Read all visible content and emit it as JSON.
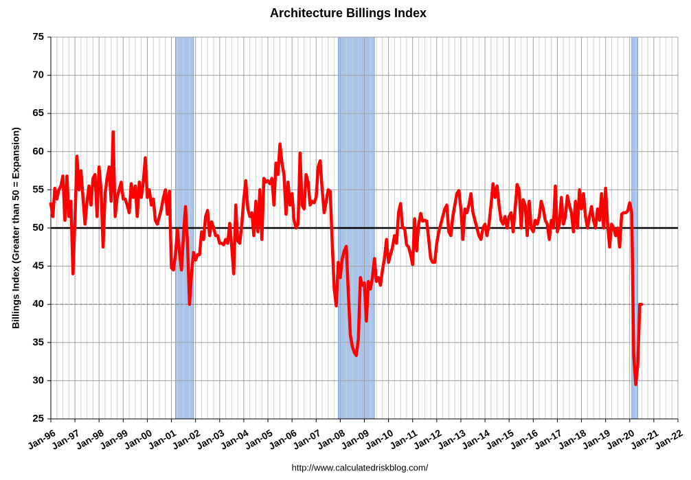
{
  "chart_data": {
    "type": "line",
    "title": "Architecture Billings Index",
    "y_label": "Billings Index (Greater than 50 = Expansion)",
    "source": "http://www.calculatedriskblog.com/",
    "color": "#ff0000",
    "grid": true,
    "xlim": [
      "1996-01",
      "2022-01"
    ],
    "ylim": [
      25,
      75
    ],
    "yticks": [
      25,
      30,
      35,
      40,
      45,
      50,
      55,
      60,
      65,
      70,
      75
    ],
    "xticks": [
      {
        "value": "1996-01",
        "label": "Jan-96"
      },
      {
        "value": "1997-01",
        "label": "Jan-97"
      },
      {
        "value": "1998-01",
        "label": "Jan-98"
      },
      {
        "value": "1999-01",
        "label": "Jan-99"
      },
      {
        "value": "2000-01",
        "label": "Jan-00"
      },
      {
        "value": "2001-01",
        "label": "Jan-01"
      },
      {
        "value": "2002-01",
        "label": "Jan-02"
      },
      {
        "value": "2003-01",
        "label": "Jan-03"
      },
      {
        "value": "2004-01",
        "label": "Jan-04"
      },
      {
        "value": "2005-01",
        "label": "Jan-05"
      },
      {
        "value": "2006-01",
        "label": "Jan-06"
      },
      {
        "value": "2007-01",
        "label": "Jan-07"
      },
      {
        "value": "2008-01",
        "label": "Jan-08"
      },
      {
        "value": "2009-01",
        "label": "Jan-09"
      },
      {
        "value": "2010-01",
        "label": "Jan-10"
      },
      {
        "value": "2011-01",
        "label": "Jan-11"
      },
      {
        "value": "2012-01",
        "label": "Jan-12"
      },
      {
        "value": "2013-01",
        "label": "Jan-13"
      },
      {
        "value": "2014-01",
        "label": "Jan-14"
      },
      {
        "value": "2015-01",
        "label": "Jan-15"
      },
      {
        "value": "2016-01",
        "label": "Jan-16"
      },
      {
        "value": "2017-01",
        "label": "Jan-17"
      },
      {
        "value": "2018-01",
        "label": "Jan-18"
      },
      {
        "value": "2019-01",
        "label": "Jan-19"
      },
      {
        "value": "2020-01",
        "label": "Jan-20"
      },
      {
        "value": "2021-01",
        "label": "Jan-21"
      },
      {
        "value": "2022-01",
        "label": "Jan-22"
      }
    ],
    "recessions": [
      {
        "start": "2001-03",
        "end": "2001-12"
      },
      {
        "start": "2007-12",
        "end": "2009-06"
      },
      {
        "start": "2020-02",
        "end": "2020-05"
      }
    ],
    "hlines": [
      {
        "value": 50,
        "color": "#000000",
        "style": "solid"
      },
      {
        "value": 40,
        "color": "#808080",
        "style": "dashed"
      }
    ],
    "x": [
      "1996-01",
      "1996-02",
      "1996-03",
      "1996-04",
      "1996-05",
      "1996-06",
      "1996-07",
      "1996-08",
      "1996-09",
      "1996-10",
      "1996-11",
      "1996-12",
      "1997-01",
      "1997-02",
      "1997-03",
      "1997-04",
      "1997-05",
      "1997-06",
      "1997-07",
      "1997-08",
      "1997-09",
      "1997-10",
      "1997-11",
      "1997-12",
      "1998-01",
      "1998-02",
      "1998-03",
      "1998-04",
      "1998-05",
      "1998-06",
      "1998-07",
      "1998-08",
      "1998-09",
      "1998-10",
      "1998-11",
      "1998-12",
      "1999-01",
      "1999-02",
      "1999-03",
      "1999-04",
      "1999-05",
      "1999-06",
      "1999-07",
      "1999-08",
      "1999-09",
      "1999-10",
      "1999-11",
      "1999-12",
      "2000-01",
      "2000-02",
      "2000-03",
      "2000-04",
      "2000-05",
      "2000-06",
      "2000-07",
      "2000-08",
      "2000-09",
      "2000-10",
      "2000-11",
      "2000-12",
      "2001-01",
      "2001-02",
      "2001-03",
      "2001-04",
      "2001-05",
      "2001-06",
      "2001-07",
      "2001-08",
      "2001-09",
      "2001-10",
      "2001-11",
      "2001-12",
      "2002-01",
      "2002-02",
      "2002-03",
      "2002-04",
      "2002-05",
      "2002-06",
      "2002-07",
      "2002-08",
      "2002-09",
      "2002-10",
      "2002-11",
      "2002-12",
      "2003-01",
      "2003-02",
      "2003-03",
      "2003-04",
      "2003-05",
      "2003-06",
      "2003-07",
      "2003-08",
      "2003-09",
      "2003-10",
      "2003-11",
      "2003-12",
      "2004-01",
      "2004-02",
      "2004-03",
      "2004-04",
      "2004-05",
      "2004-06",
      "2004-07",
      "2004-08",
      "2004-09",
      "2004-10",
      "2004-11",
      "2004-12",
      "2005-01",
      "2005-02",
      "2005-03",
      "2005-04",
      "2005-05",
      "2005-06",
      "2005-07",
      "2005-08",
      "2005-09",
      "2005-10",
      "2005-11",
      "2005-12",
      "2006-01",
      "2006-02",
      "2006-03",
      "2006-04",
      "2006-05",
      "2006-06",
      "2006-07",
      "2006-08",
      "2006-09",
      "2006-10",
      "2006-11",
      "2006-12",
      "2007-01",
      "2007-02",
      "2007-03",
      "2007-04",
      "2007-05",
      "2007-06",
      "2007-07",
      "2007-08",
      "2007-09",
      "2007-10",
      "2007-11",
      "2007-12",
      "2008-01",
      "2008-02",
      "2008-03",
      "2008-04",
      "2008-05",
      "2008-06",
      "2008-07",
      "2008-08",
      "2008-09",
      "2008-10",
      "2008-11",
      "2008-12",
      "2009-01",
      "2009-02",
      "2009-03",
      "2009-04",
      "2009-05",
      "2009-06",
      "2009-07",
      "2009-08",
      "2009-09",
      "2009-10",
      "2009-11",
      "2009-12",
      "2010-01",
      "2010-02",
      "2010-03",
      "2010-04",
      "2010-05",
      "2010-06",
      "2010-07",
      "2010-08",
      "2010-09",
      "2010-10",
      "2010-11",
      "2010-12",
      "2011-01",
      "2011-02",
      "2011-03",
      "2011-04",
      "2011-05",
      "2011-06",
      "2011-07",
      "2011-08",
      "2011-09",
      "2011-10",
      "2011-11",
      "2011-12",
      "2012-01",
      "2012-02",
      "2012-03",
      "2012-04",
      "2012-05",
      "2012-06",
      "2012-07",
      "2012-08",
      "2012-09",
      "2012-10",
      "2012-11",
      "2012-12",
      "2013-01",
      "2013-02",
      "2013-03",
      "2013-04",
      "2013-05",
      "2013-06",
      "2013-07",
      "2013-08",
      "2013-09",
      "2013-10",
      "2013-11",
      "2013-12",
      "2014-01",
      "2014-02",
      "2014-03",
      "2014-04",
      "2014-05",
      "2014-06",
      "2014-07",
      "2014-08",
      "2014-09",
      "2014-10",
      "2014-11",
      "2014-12",
      "2015-01",
      "2015-02",
      "2015-03",
      "2015-04",
      "2015-05",
      "2015-06",
      "2015-07",
      "2015-08",
      "2015-09",
      "2015-10",
      "2015-11",
      "2015-12",
      "2016-01",
      "2016-02",
      "2016-03",
      "2016-04",
      "2016-05",
      "2016-06",
      "2016-07",
      "2016-08",
      "2016-09",
      "2016-10",
      "2016-11",
      "2016-12",
      "2017-01",
      "2017-02",
      "2017-03",
      "2017-04",
      "2017-05",
      "2017-06",
      "2017-07",
      "2017-08",
      "2017-09",
      "2017-10",
      "2017-11",
      "2017-12",
      "2018-01",
      "2018-02",
      "2018-03",
      "2018-04",
      "2018-05",
      "2018-06",
      "2018-07",
      "2018-08",
      "2018-09",
      "2018-10",
      "2018-11",
      "2018-12",
      "2019-01",
      "2019-02",
      "2019-03",
      "2019-04",
      "2019-05",
      "2019-06",
      "2019-07",
      "2019-08",
      "2019-09",
      "2019-10",
      "2019-11",
      "2019-12",
      "2020-01",
      "2020-02",
      "2020-03",
      "2020-04",
      "2020-05",
      "2020-06",
      "2020-07"
    ],
    "values": [
      53.2,
      51.5,
      55.2,
      53.8,
      55.0,
      55.5,
      56.8,
      51.0,
      56.8,
      51.5,
      53.5,
      44.0,
      51.0,
      59.4,
      55.0,
      57.5,
      54.0,
      50.5,
      53.5,
      55.5,
      53.0,
      56.5,
      57.0,
      51.5,
      58.0,
      55.0,
      47.5,
      54.5,
      56.5,
      58.0,
      53.5,
      62.6,
      51.5,
      54.0,
      55.0,
      56.0,
      53.8,
      53.8,
      53.0,
      52.0,
      55.8,
      54.0,
      55.5,
      51.5,
      56.0,
      54.0,
      56.0,
      59.2,
      54.0,
      55.0,
      53.0,
      53.8,
      51.0,
      50.5,
      51.5,
      52.5,
      54.0,
      55.0,
      51.8,
      54.8,
      44.8,
      44.5,
      46.5,
      49.8,
      46.8,
      44.5,
      49.0,
      52.8,
      48.0,
      40.0,
      44.0,
      46.8,
      45.8,
      46.5,
      46.5,
      49.5,
      48.5,
      51.5,
      52.3,
      49.0,
      50.8,
      50.0,
      49.0,
      49.0,
      48.0,
      48.0,
      47.8,
      48.5,
      48.0,
      50.6,
      47.5,
      44.0,
      53.0,
      48.3,
      48.0,
      50.5,
      53.8,
      56.2,
      52.5,
      51.5,
      52.0,
      49.0,
      53.5,
      49.5,
      55.0,
      48.5,
      56.5,
      56.0,
      56.2,
      55.8,
      56.5,
      53.0,
      58.5,
      57.0,
      61.0,
      58.5,
      57.0,
      51.8,
      56.0,
      53.0,
      54.5,
      51.0,
      50.0,
      50.5,
      59.8,
      53.0,
      52.5,
      57.0,
      56.0,
      53.0,
      53.5,
      53.3,
      54.0,
      58.0,
      58.8,
      55.0,
      52.0,
      53.5,
      55.0,
      54.8,
      48.0,
      42.0,
      39.8,
      45.5,
      43.5,
      46.0,
      47.0,
      47.6,
      41.5,
      36.0,
      34.5,
      33.7,
      33.3,
      35.5,
      43.5,
      42.5,
      42.8,
      37.8,
      43.0,
      42.0,
      43.5,
      46.0,
      43.0,
      43.5,
      42.5,
      44.5,
      46.0,
      48.5,
      45.5,
      46.5,
      47.5,
      49.0,
      48.0,
      52.0,
      53.2,
      50.0,
      50.0,
      47.8,
      47.5,
      46.5,
      45.2,
      51.2,
      47.0,
      50.5,
      51.9,
      50.9,
      51.0,
      50.9,
      48.5,
      46.0,
      45.5,
      45.5,
      48.0,
      49.5,
      50.5,
      51.5,
      52.5,
      53.0,
      49.5,
      49.0,
      51.5,
      53.0,
      54.5,
      54.9,
      52.5,
      48.5,
      52.5,
      52.0,
      53.0,
      54.5,
      52.0,
      51.0,
      50.0,
      49.0,
      48.5,
      50.0,
      50.5,
      49.0,
      50.5,
      53.0,
      55.8,
      54.0,
      55.5,
      53.0,
      51.0,
      50.5,
      51.5,
      50.0,
      51.5,
      52.0,
      49.5,
      52.5,
      55.7,
      55.0,
      50.0,
      53.7,
      53.0,
      49.0,
      53.5,
      50.0,
      49.5,
      51.0,
      50.5,
      51.5,
      53.5,
      52.5,
      51.0,
      50.5,
      48.5,
      51.0,
      50.0,
      55.5,
      49.5,
      50.5,
      54.0,
      50.5,
      51.5,
      54.2,
      53.0,
      52.0,
      49.5,
      53.5,
      50.0,
      55.0,
      52.5,
      54.5,
      51.5,
      50.0,
      51.5,
      52.8,
      51.0,
      50.0,
      52.5,
      51.0,
      54.5,
      50.0,
      55.2,
      50.5,
      47.5,
      50.5,
      50.0,
      49.0,
      50.0,
      47.5,
      51.8,
      52.0,
      52.0,
      52.2,
      53.3,
      52.0,
      33.3,
      29.5,
      32.0,
      40.0,
      40.0
    ]
  }
}
